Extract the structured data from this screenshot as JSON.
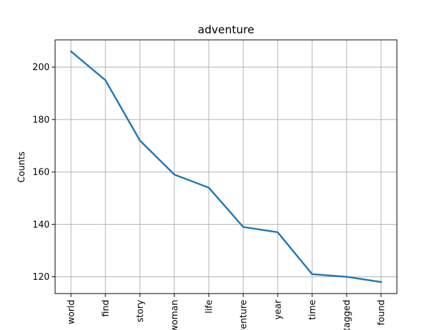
{
  "chart_data": {
    "type": "line",
    "title": "adventure",
    "xlabel": "",
    "ylabel": "Counts",
    "categories": [
      "world",
      "find",
      "story",
      "woman",
      "life",
      "adventure",
      "year",
      "time",
      "tagged",
      "found"
    ],
    "series": [
      {
        "values": [
          206,
          195,
          172,
          159,
          154,
          139,
          137,
          121,
          120,
          118
        ]
      }
    ],
    "ylim": [
      113.6,
      210.4
    ],
    "yticks": [
      120,
      140,
      160,
      180,
      200
    ],
    "grid": true,
    "line_color": "#1f77b4"
  }
}
